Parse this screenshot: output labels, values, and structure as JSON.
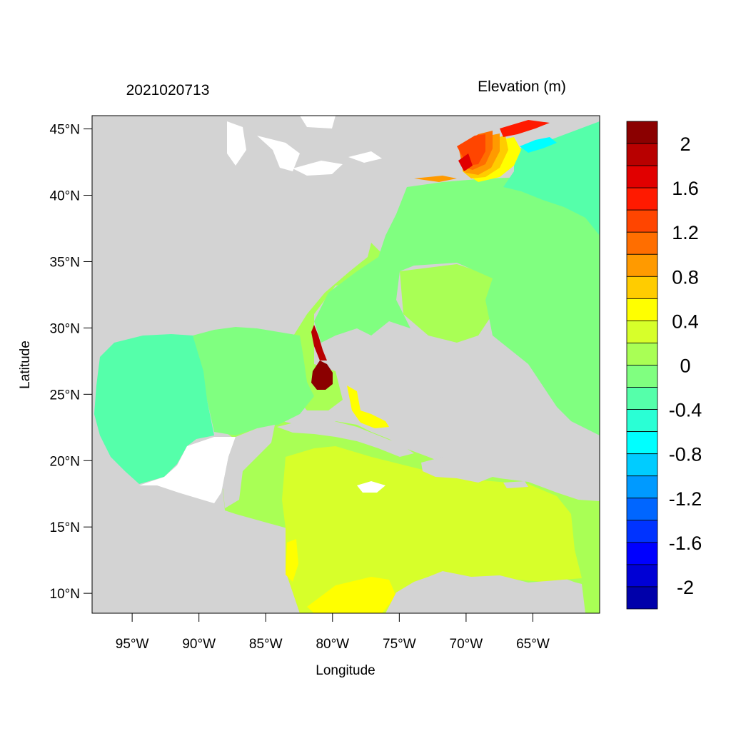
{
  "header": {
    "timestamp": "2021020713",
    "variable_label": "Elevation (m)"
  },
  "axes": {
    "xlabel": "Longitude",
    "ylabel": "Latitude",
    "lon_range": [
      -98,
      -60
    ],
    "lat_range": [
      8.5,
      46
    ],
    "lon_ticks": [
      {
        "value": -95,
        "label": "95°W"
      },
      {
        "value": -90,
        "label": "90°W"
      },
      {
        "value": -85,
        "label": "85°W"
      },
      {
        "value": -80,
        "label": "80°W"
      },
      {
        "value": -75,
        "label": "75°W"
      },
      {
        "value": -70,
        "label": "70°W"
      },
      {
        "value": -65,
        "label": "65°W"
      }
    ],
    "lat_ticks": [
      {
        "value": 45,
        "label": "45°N"
      },
      {
        "value": 40,
        "label": "40°N"
      },
      {
        "value": 35,
        "label": "35°N"
      },
      {
        "value": 30,
        "label": "30°N"
      },
      {
        "value": 25,
        "label": "25°N"
      },
      {
        "value": 20,
        "label": "20°N"
      },
      {
        "value": 15,
        "label": "15°N"
      },
      {
        "value": 10,
        "label": "10°N"
      }
    ]
  },
  "colorbar": {
    "levels": [
      {
        "color": "#8b0000"
      },
      {
        "color": "#b80000"
      },
      {
        "color": "#e10000"
      },
      {
        "color": "#ff1a00"
      },
      {
        "color": "#ff4500"
      },
      {
        "color": "#ff6e00"
      },
      {
        "color": "#ff9a00"
      },
      {
        "color": "#ffcc00"
      },
      {
        "color": "#ffff00"
      },
      {
        "color": "#d7ff2a"
      },
      {
        "color": "#a9ff55"
      },
      {
        "color": "#80ff80"
      },
      {
        "color": "#55ffaa"
      },
      {
        "color": "#2affd5"
      },
      {
        "color": "#00ffff"
      },
      {
        "color": "#00ccff"
      },
      {
        "color": "#009aff"
      },
      {
        "color": "#0066ff"
      },
      {
        "color": "#0033ff"
      },
      {
        "color": "#0000ff"
      },
      {
        "color": "#0000d5"
      },
      {
        "color": "#0000aa"
      }
    ],
    "labels": [
      "2",
      "1.6",
      "1.2",
      "0.8",
      "0.4",
      "0",
      "-0.4",
      "-0.8",
      "-1.2",
      "-1.6",
      "-2"
    ]
  },
  "colors": {
    "land": "#d3d3d3",
    "frame": "#000000"
  }
}
